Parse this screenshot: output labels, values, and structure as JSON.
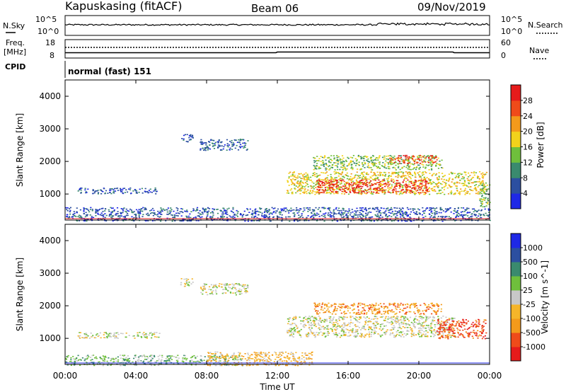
{
  "header": {
    "station": "Kapuskasing (fitACF)",
    "beam": "Beam 06",
    "date": "09/Nov/2019"
  },
  "nsky": {
    "label": "N.Sky",
    "ticks": [
      "10^5",
      "10^0"
    ],
    "right_ticks": [
      "10^5",
      "10^0"
    ],
    "right_label": "N.Search",
    "trace_color": "#000000"
  },
  "freq": {
    "label": "Freq.",
    "unit": "[MHz]",
    "ticks": [
      "18",
      "8"
    ],
    "right_ticks": [
      "60",
      "0"
    ],
    "right_label": "Nave",
    "trace_color": "#000000"
  },
  "cpid": {
    "label": "CPID",
    "value": "normal (fast) 151"
  },
  "x_axis": {
    "label": "Time UT",
    "ticks": [
      "00:00",
      "04:00",
      "08:00",
      "12:00",
      "16:00",
      "20:00",
      "00:00"
    ]
  },
  "colors": {
    "power": [
      "#1e28e6",
      "#2c4fa0",
      "#3a8a6e",
      "#6fbf3c",
      "#f2d21b",
      "#f39a1b",
      "#ef4b1a",
      "#e61b1b"
    ],
    "velocity": [
      "#e61b1b",
      "#ef4b1a",
      "#f39a1b",
      "#f5b52a",
      "#c8c8c8",
      "#6fbf3c",
      "#3a8a6e",
      "#2c4fa0",
      "#1e28e6"
    ]
  },
  "chart_data": [
    {
      "type": "heatmap",
      "panel": "power",
      "ylabel": "Slant Range [km]",
      "yticks": [
        "1000",
        "2000",
        "3000",
        "4000"
      ],
      "ylim": [
        200,
        4500
      ],
      "xlim_hours": [
        0,
        24
      ],
      "colorbar": {
        "label": "Power [dB]",
        "ticks": [
          "4",
          "8",
          "12",
          "16",
          "20",
          "24",
          "28"
        ],
        "range": [
          0,
          32
        ]
      },
      "echo_regions": [
        {
          "t_start": 0.0,
          "t_end": 24.0,
          "r_start": 180,
          "r_end": 600,
          "level": 1
        },
        {
          "t_start": 0.7,
          "t_end": 5.3,
          "r_start": 1020,
          "r_end": 1200,
          "level": 1
        },
        {
          "t_start": 6.5,
          "t_end": 7.2,
          "r_start": 2600,
          "r_end": 2850,
          "level": 1
        },
        {
          "t_start": 7.6,
          "t_end": 10.3,
          "r_start": 2350,
          "r_end": 2700,
          "level": 1
        },
        {
          "t_start": 12.5,
          "t_end": 23.8,
          "r_start": 1000,
          "r_end": 1700,
          "level": 4
        },
        {
          "t_start": 14.2,
          "t_end": 20.5,
          "r_start": 1050,
          "r_end": 1450,
          "level": 7
        },
        {
          "t_start": 14.0,
          "t_end": 21.3,
          "r_start": 1750,
          "r_end": 2200,
          "level": 3
        },
        {
          "t_start": 18.3,
          "t_end": 21.0,
          "r_start": 1950,
          "r_end": 2200,
          "level": 6
        },
        {
          "t_start": 23.4,
          "t_end": 24.0,
          "r_start": 600,
          "r_end": 1300,
          "level": 3
        }
      ]
    },
    {
      "type": "heatmap",
      "panel": "velocity",
      "ylabel": "Slant Range [km]",
      "yticks": [
        "1000",
        "2000",
        "3000",
        "4000"
      ],
      "ylim": [
        200,
        4500
      ],
      "xlim_hours": [
        0,
        24
      ],
      "colorbar": {
        "label": "Velocity [m s^-1]",
        "ticks": [
          "1000",
          "500",
          "100",
          "25",
          "-25",
          "-100",
          "-500",
          "-1000"
        ]
      },
      "echo_regions": [
        {
          "t_start": 0.0,
          "t_end": 10.0,
          "r_start": 180,
          "r_end": 500,
          "level": 5
        },
        {
          "t_start": 8.0,
          "t_end": 14.0,
          "r_start": 180,
          "r_end": 600,
          "level": 3
        },
        {
          "t_start": 0.7,
          "t_end": 5.3,
          "r_start": 1020,
          "r_end": 1200,
          "level": 4
        },
        {
          "t_start": 6.5,
          "t_end": 7.2,
          "r_start": 2600,
          "r_end": 2850,
          "level": 4
        },
        {
          "t_start": 7.6,
          "t_end": 10.3,
          "r_start": 2350,
          "r_end": 2700,
          "level": 4
        },
        {
          "t_start": 12.5,
          "t_end": 22.0,
          "r_start": 1050,
          "r_end": 1700,
          "level": 4
        },
        {
          "t_start": 14.0,
          "t_end": 21.3,
          "r_start": 1750,
          "r_end": 2100,
          "level": 2
        },
        {
          "t_start": 21.0,
          "t_end": 23.8,
          "r_start": 1000,
          "r_end": 1600,
          "level": 1
        }
      ]
    }
  ]
}
